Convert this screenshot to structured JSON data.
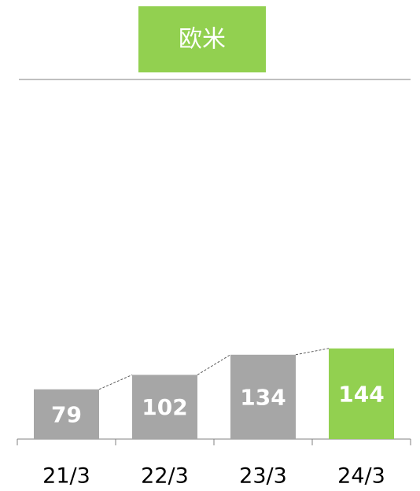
{
  "chart_data": {
    "type": "bar",
    "title": "欧米",
    "categories": [
      "21/3",
      "22/3",
      "23/3",
      "24/3"
    ],
    "values": [
      79,
      102,
      134,
      144
    ],
    "colors": [
      "#a6a6a6",
      "#a6a6a6",
      "#a6a6a6",
      "#92d050"
    ],
    "title_color": "#92d050"
  }
}
